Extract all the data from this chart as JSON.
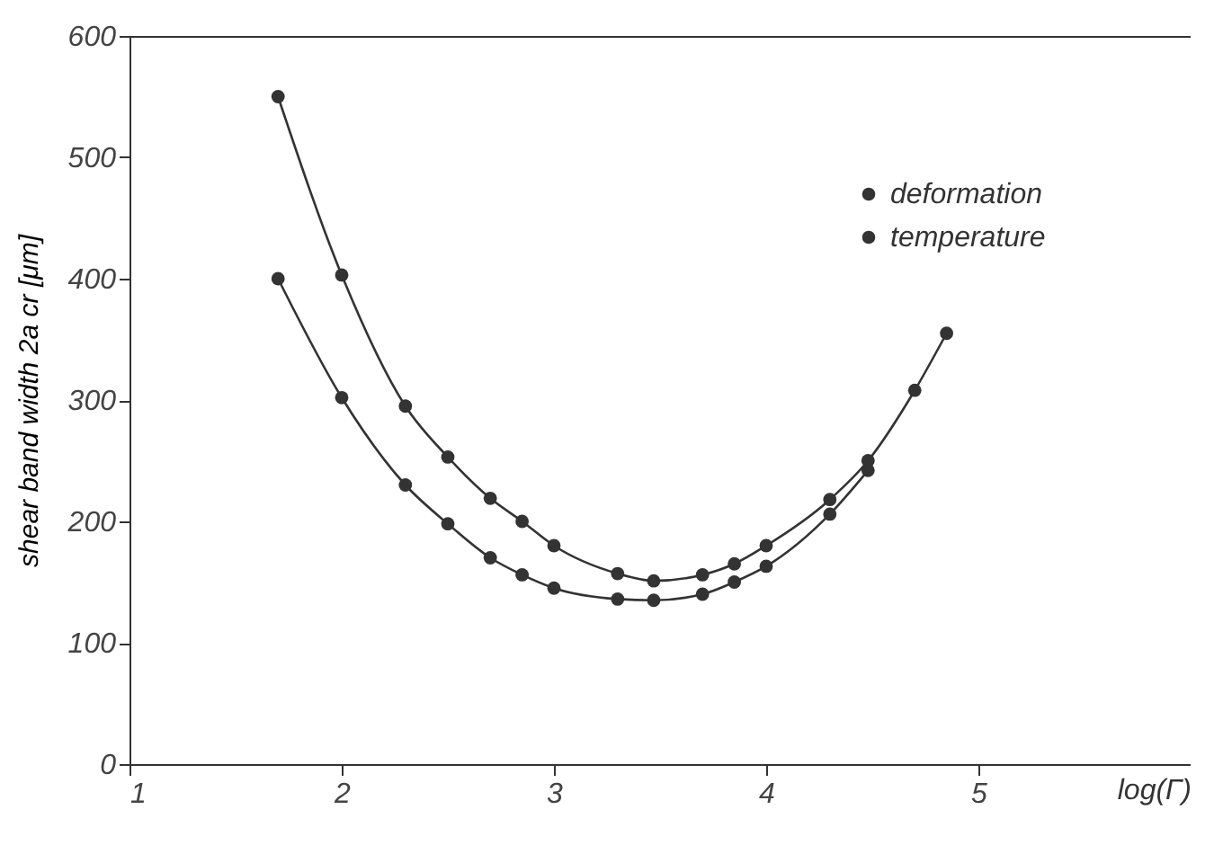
{
  "chart_data": {
    "type": "line",
    "xlabel": "log(Γ̇)",
    "ylabel": "shear  band  width     2a cr [μm]",
    "xlim": [
      1,
      6
    ],
    "xticks": [
      {
        "value": 1,
        "label": "1"
      },
      {
        "value": 2,
        "label": "2"
      },
      {
        "value": 3,
        "label": "3"
      },
      {
        "value": 4,
        "label": "4"
      },
      {
        "value": 5,
        "label": "5"
      }
    ],
    "ylim": [
      0,
      600
    ],
    "yticks": [
      0,
      100,
      200,
      300,
      400,
      500,
      600
    ],
    "grid": false,
    "legend": "top right",
    "marker": "circle",
    "line_style": "solid",
    "series": [
      {
        "name": "deformation",
        "color": "#333333",
        "x": [
          1.7,
          2.0,
          2.3,
          2.5,
          2.7,
          2.85,
          3.0,
          3.3,
          3.47,
          3.7,
          3.85,
          4.0,
          4.3,
          4.48
        ],
        "values": [
          400,
          302,
          230,
          198,
          170,
          156,
          145,
          136,
          135,
          140,
          150,
          163,
          206,
          242
        ]
      },
      {
        "name": "temperature",
        "color": "#333333",
        "x": [
          1.7,
          2.0,
          2.3,
          2.5,
          2.7,
          2.85,
          3.0,
          3.3,
          3.47,
          3.7,
          3.85,
          4.0,
          4.3,
          4.48,
          4.7,
          4.85
        ],
        "values": [
          550,
          403,
          295,
          253,
          219,
          200,
          180,
          157,
          151,
          156,
          165,
          180,
          218,
          250,
          308,
          355
        ]
      }
    ]
  }
}
